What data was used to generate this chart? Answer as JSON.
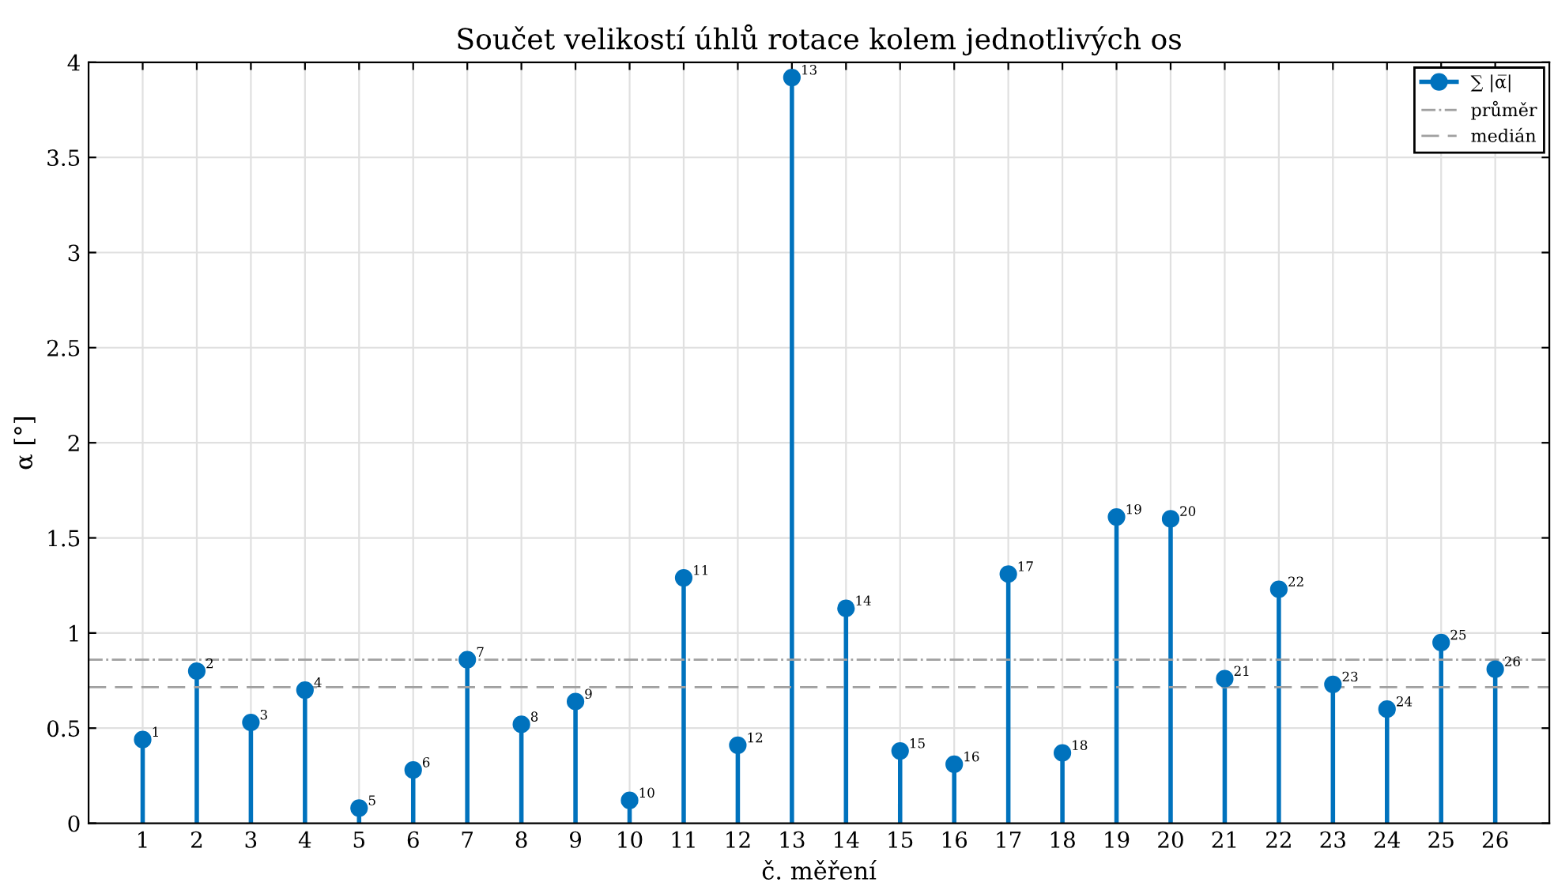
{
  "chart_data": {
    "type": "lollipop",
    "title": "Součet velikostí úhlů rotace kolem jednotlivých os",
    "xlabel": "č. měření",
    "ylabel": "α [°]",
    "categories": [
      "1",
      "2",
      "3",
      "4",
      "5",
      "6",
      "7",
      "8",
      "9",
      "10",
      "11",
      "12",
      "13",
      "14",
      "15",
      "16",
      "17",
      "18",
      "19",
      "20",
      "21",
      "22",
      "23",
      "24",
      "25",
      "26"
    ],
    "series": [
      {
        "name": "∑ |α̅|",
        "color": "#0072bd",
        "values": [
          0.44,
          0.8,
          0.53,
          0.7,
          0.08,
          0.28,
          0.86,
          0.52,
          0.64,
          0.12,
          1.29,
          0.41,
          3.92,
          1.13,
          0.38,
          0.31,
          1.31,
          0.37,
          1.61,
          1.6,
          0.76,
          1.23,
          0.73,
          0.6,
          0.95,
          0.81
        ]
      }
    ],
    "annotations": [
      {
        "text": "1",
        "x": "1",
        "y": 0.44
      },
      {
        "text": "2",
        "x": "2",
        "y": 0.8
      },
      {
        "text": "3",
        "x": "3",
        "y": 0.53
      },
      {
        "text": "4",
        "x": "4",
        "y": 0.7
      },
      {
        "text": "5",
        "x": "5",
        "y": 0.08
      },
      {
        "text": "6",
        "x": "6",
        "y": 0.28
      },
      {
        "text": "7",
        "x": "7",
        "y": 0.86
      },
      {
        "text": "8",
        "x": "8",
        "y": 0.52
      },
      {
        "text": "9",
        "x": "9",
        "y": 0.64
      },
      {
        "text": "10",
        "x": "10",
        "y": 0.12
      },
      {
        "text": "11",
        "x": "11",
        "y": 1.29
      },
      {
        "text": "12",
        "x": "12",
        "y": 0.41
      },
      {
        "text": "13",
        "x": "13",
        "y": 3.92
      },
      {
        "text": "14",
        "x": "14",
        "y": 1.13
      },
      {
        "text": "15",
        "x": "15",
        "y": 0.38
      },
      {
        "text": "16",
        "x": "16",
        "y": 0.31
      },
      {
        "text": "17",
        "x": "17",
        "y": 1.31
      },
      {
        "text": "18",
        "x": "18",
        "y": 0.37
      },
      {
        "text": "19",
        "x": "19",
        "y": 1.61
      },
      {
        "text": "20",
        "x": "20",
        "y": 1.6
      },
      {
        "text": "21",
        "x": "21",
        "y": 0.76
      },
      {
        "text": "22",
        "x": "22",
        "y": 1.23
      },
      {
        "text": "23",
        "x": "23",
        "y": 0.73
      },
      {
        "text": "24",
        "x": "24",
        "y": 0.6
      },
      {
        "text": "25",
        "x": "25",
        "y": 0.95
      },
      {
        "text": "26",
        "x": "26",
        "y": 0.81
      }
    ],
    "ref_lines": [
      {
        "axis": "y",
        "value": 0.86,
        "label": "průměr",
        "color": "#a0a0a0",
        "line_style": "dashdot"
      },
      {
        "axis": "y",
        "value": 0.715,
        "label": "medián",
        "color": "#a0a0a0",
        "line_style": "dashed"
      }
    ],
    "ylim": [
      0,
      4
    ],
    "yticks": [
      0,
      0.5,
      1,
      1.5,
      2,
      2.5,
      3,
      3.5,
      4
    ],
    "grid": true,
    "legend": "top right",
    "marker": "circle"
  }
}
